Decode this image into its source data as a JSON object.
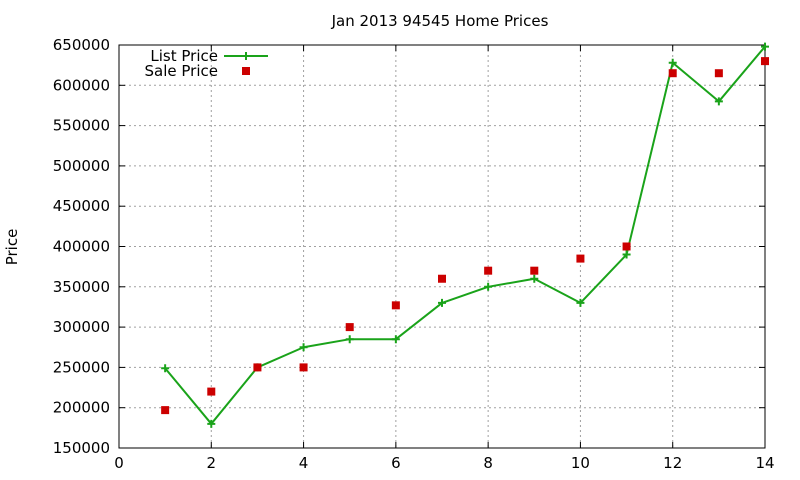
{
  "chart_data": {
    "type": "line",
    "title": "Jan 2013 94545 Home Prices",
    "xlabel": "",
    "ylabel": "Price",
    "xlim": [
      0,
      14
    ],
    "ylim": [
      150000,
      650000
    ],
    "xticks": [
      0,
      2,
      4,
      6,
      8,
      10,
      12,
      14
    ],
    "yticks": [
      150000,
      200000,
      250000,
      300000,
      350000,
      400000,
      450000,
      500000,
      550000,
      600000,
      650000
    ],
    "grid": true,
    "legend_position": "top-left",
    "series": [
      {
        "name": "List Price",
        "style": "lines-points",
        "marker": "plus",
        "color": "#1aa31a",
        "x": [
          1,
          2,
          3,
          4,
          5,
          6,
          7,
          8,
          9,
          10,
          11,
          12,
          13,
          14
        ],
        "values": [
          249000,
          180000,
          250000,
          275000,
          285000,
          285000,
          330000,
          350000,
          360000,
          330000,
          390000,
          628000,
          580000,
          648000
        ]
      },
      {
        "name": "Sale Price",
        "style": "points",
        "marker": "square",
        "color": "#cc0000",
        "x": [
          1,
          2,
          3,
          4,
          5,
          6,
          7,
          8,
          9,
          10,
          11,
          12,
          13,
          14
        ],
        "values": [
          197000,
          220000,
          250000,
          250000,
          300000,
          327000,
          360000,
          370000,
          370000,
          385000,
          400000,
          615000,
          615000,
          630000
        ]
      }
    ]
  }
}
